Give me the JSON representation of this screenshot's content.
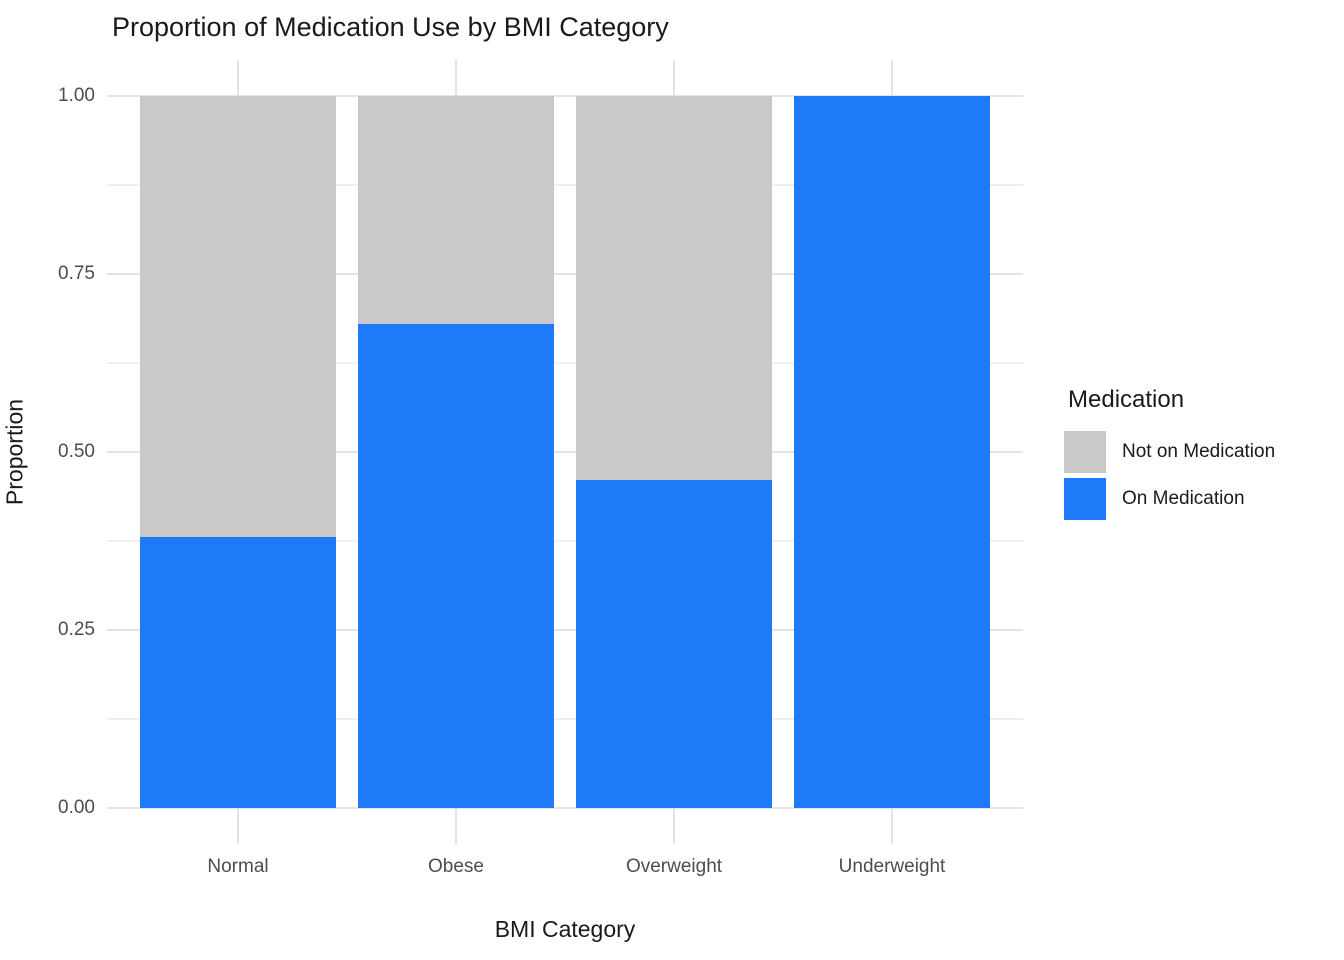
{
  "title": "Proportion of Medication Use by BMI Category",
  "axes": {
    "x_label": "BMI Category",
    "y_label": "Proportion"
  },
  "legend": {
    "title": "Medication",
    "items": [
      {
        "label": "Not on Medication",
        "color": "#c9c9c9"
      },
      {
        "label": "On Medication",
        "color": "#1e7af8"
      }
    ]
  },
  "chart_data": {
    "type": "bar",
    "stacked": true,
    "title": "Proportion of Medication Use by BMI Category",
    "xlabel": "BMI Category",
    "ylabel": "Proportion",
    "categories": [
      "Normal",
      "Obese",
      "Overweight",
      "Underweight"
    ],
    "series": [
      {
        "name": "On Medication",
        "color": "#1e7af8",
        "values": [
          0.38,
          0.68,
          0.46,
          1.0
        ]
      },
      {
        "name": "Not on Medication",
        "color": "#c9c9c9",
        "values": [
          0.62,
          0.32,
          0.54,
          0.0
        ]
      }
    ],
    "ylim": [
      0,
      1
    ],
    "yticks": [
      0,
      0.25,
      0.5,
      0.75,
      1
    ],
    "ytick_labels": [
      "0.00",
      "0.25",
      "0.50",
      "0.75",
      "1.00"
    ],
    "minor_yticks": [
      0.125,
      0.375,
      0.625,
      0.875
    ],
    "grid": true,
    "legend_position": "right"
  }
}
